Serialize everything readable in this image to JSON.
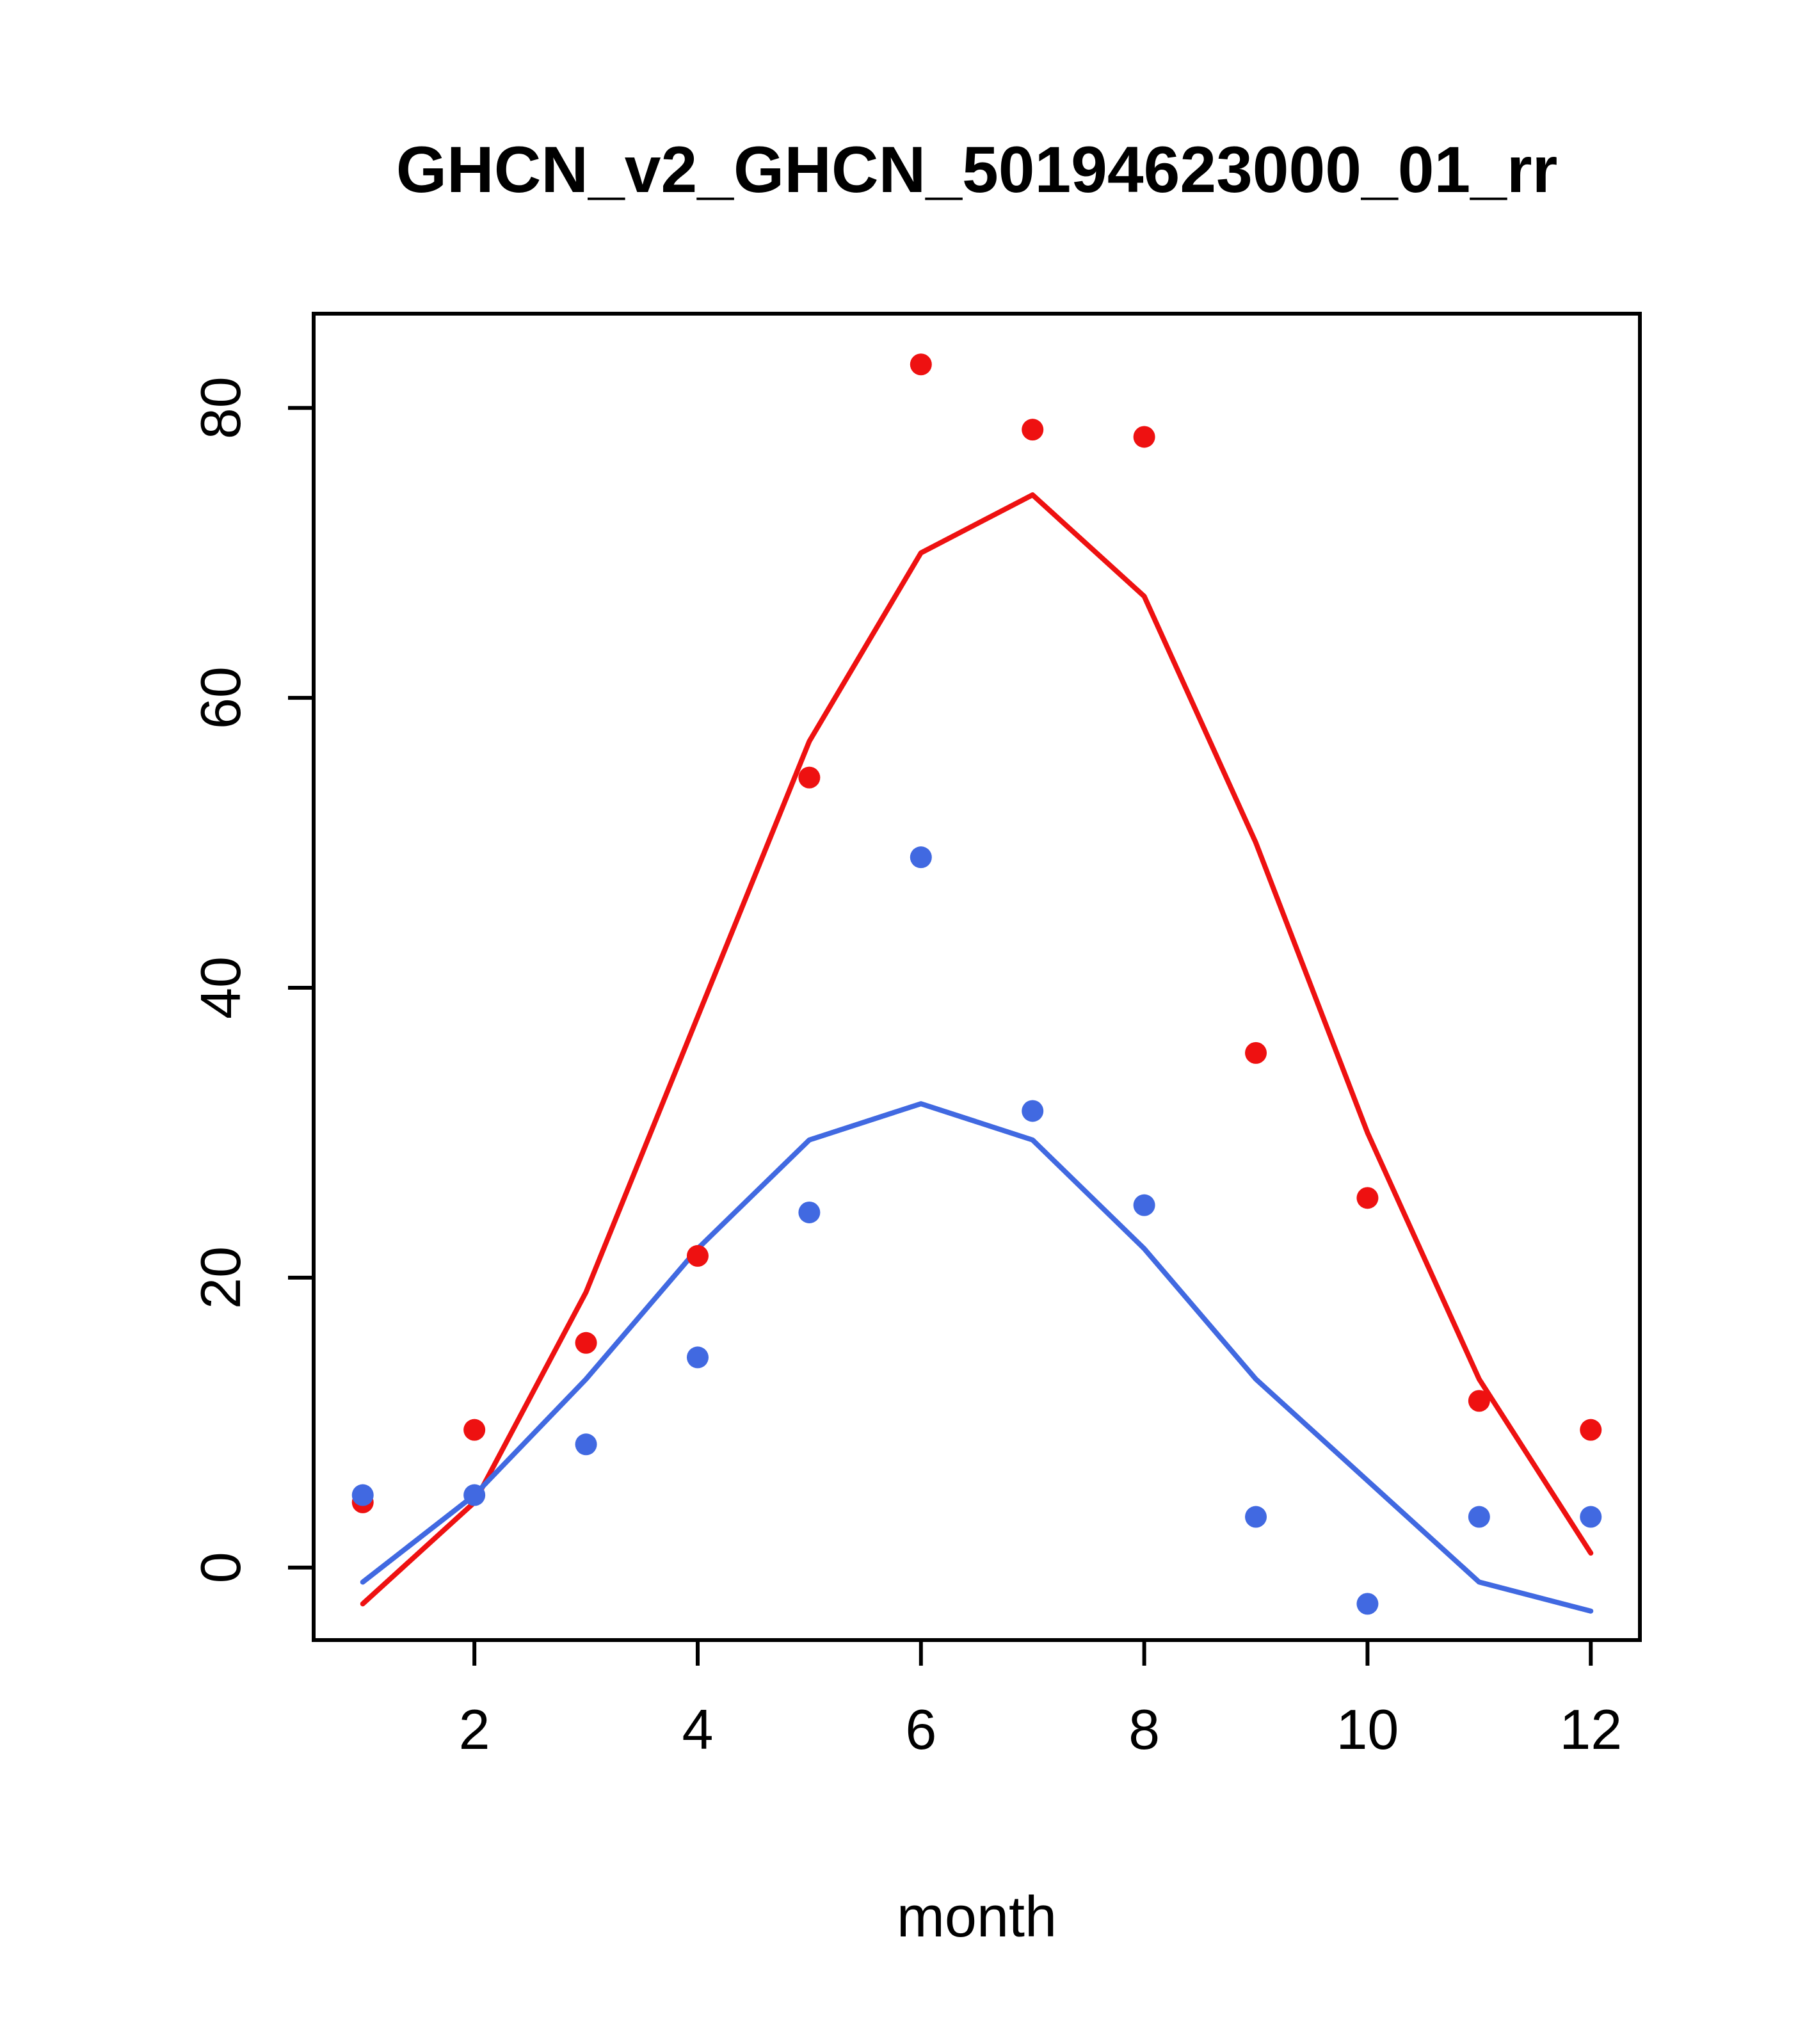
{
  "title": "GHCN_v2_GHCN_50194623000_01_rr",
  "chart_data": {
    "type": "scatter",
    "title": "GHCN_v2_GHCN_50194623000_01_rr",
    "xlabel": "month",
    "ylabel": "",
    "x": [
      1,
      2,
      3,
      4,
      5,
      6,
      7,
      8,
      9,
      10,
      11,
      12
    ],
    "xticks": [
      2,
      4,
      6,
      8,
      10,
      12
    ],
    "yticks": [
      0,
      20,
      40,
      60,
      80
    ],
    "xlim": [
      0.56,
      12.44
    ],
    "ylim": [
      -5,
      86.5
    ],
    "grid": false,
    "legend": "none",
    "colors": {
      "red": "#ee1111",
      "blue": "#4169e1"
    },
    "series": [
      {
        "name": "red-line",
        "type": "line",
        "color": "#ee1111",
        "values": [
          -2.5,
          4.5,
          19,
          38,
          57,
          70,
          74,
          67,
          50,
          30,
          13,
          1
        ]
      },
      {
        "name": "blue-line",
        "type": "line",
        "color": "#4169e1",
        "values": [
          -1,
          5,
          13,
          22,
          29.5,
          32,
          29.5,
          22,
          13,
          6,
          -1,
          -3
        ]
      },
      {
        "name": "red-points",
        "type": "points",
        "color": "#ee1111",
        "values": [
          4.5,
          9.5,
          15.5,
          21.5,
          54.5,
          83,
          78.5,
          78,
          35.5,
          25.5,
          11.5,
          9.5
        ]
      },
      {
        "name": "blue-points",
        "type": "points",
        "color": "#4169e1",
        "values": [
          5,
          5,
          8.5,
          14.5,
          24.5,
          49,
          31.5,
          25,
          3.5,
          -2.5,
          3.5,
          3.5
        ]
      }
    ]
  }
}
